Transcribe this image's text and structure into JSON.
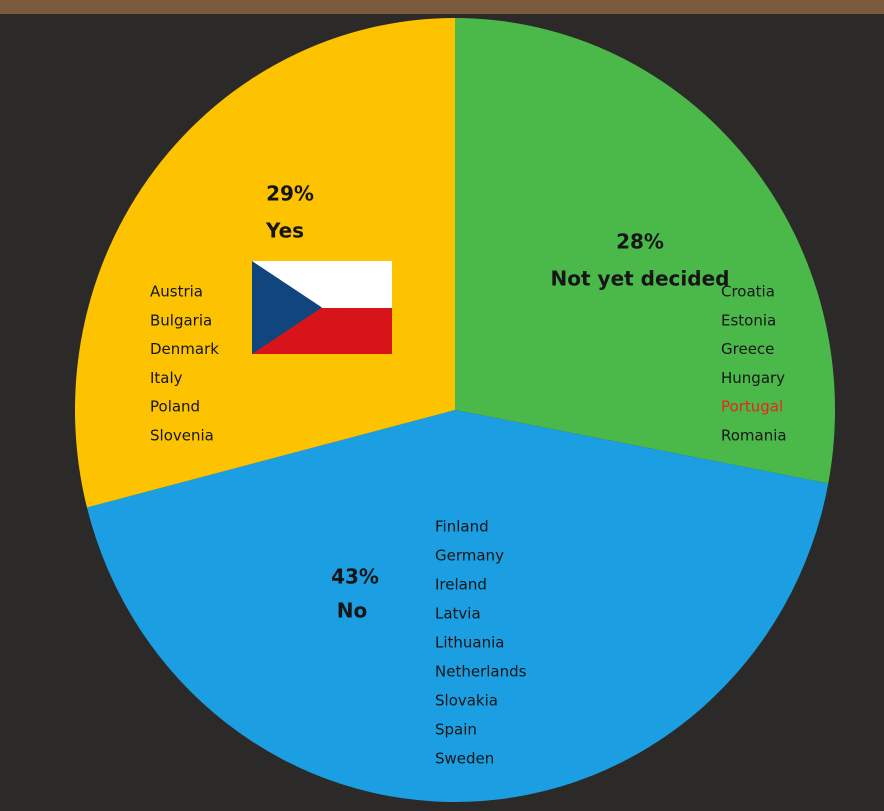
{
  "chart_data": {
    "type": "pie",
    "categories": [
      "Not yet decided",
      "No",
      "Yes"
    ],
    "values": [
      28,
      43,
      29
    ],
    "value_labels": [
      "28%",
      "43%",
      "29%"
    ],
    "colors": [
      "#4bb84a",
      "#1b9fe2",
      "#fdc300"
    ],
    "country_lists": [
      [
        "Croatia",
        "Estonia",
        "Greece",
        "Hungary",
        "Portugal",
        "Romania"
      ],
      [
        "Finland",
        "Germany",
        "Ireland",
        "Latvia",
        "Lithuania",
        "Netherlands",
        "Slovakia",
        "Spain",
        "Sweden"
      ],
      [
        "Austria",
        "Bulgaria",
        "Denmark",
        "Italy",
        "Poland",
        "Slovenia"
      ]
    ],
    "highlight": {
      "list": 0,
      "index": 4,
      "color": "#e8261b"
    }
  }
}
